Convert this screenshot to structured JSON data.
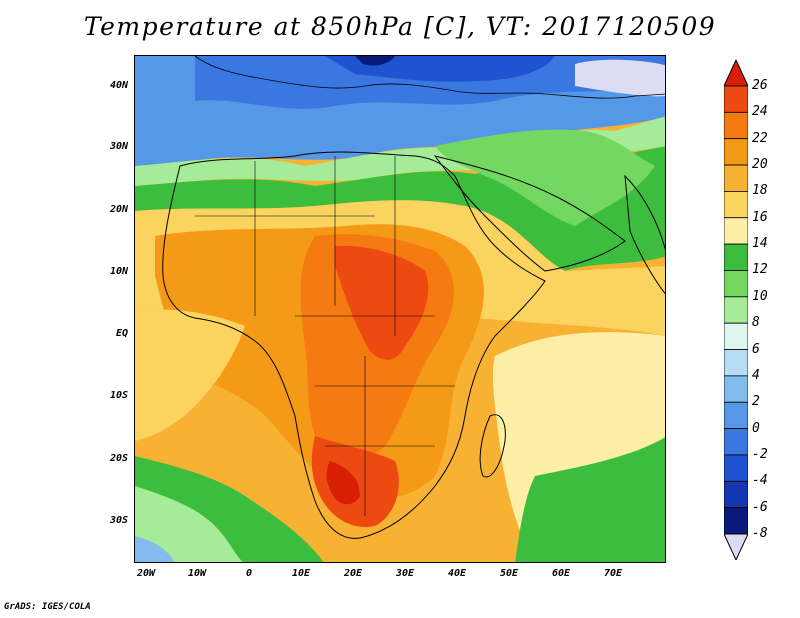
{
  "title": "Temperature at 850hPa [C], VT: 2017120509",
  "credit": "GrADS: IGES/COLA",
  "map": {
    "lat_labels": [
      "40N",
      "30N",
      "20N",
      "10N",
      "EQ",
      "10S",
      "20S",
      "30S"
    ],
    "lon_labels": [
      "20W",
      "10W",
      "0",
      "10E",
      "20E",
      "30E",
      "40E",
      "50E",
      "60E",
      "70E"
    ],
    "lon_range": [
      "22W",
      "80E"
    ],
    "lat_range": [
      "36S",
      "45N"
    ]
  },
  "colorbar": {
    "labels": [
      "26",
      "24",
      "22",
      "20",
      "18",
      "16",
      "14",
      "12",
      "10",
      "8",
      "6",
      "4",
      "2",
      "0",
      "-2",
      "-4",
      "-6",
      "-8"
    ],
    "colors": [
      "#d81e05",
      "#ec4a11",
      "#f57a12",
      "#f59a17",
      "#f7b233",
      "#fbd35f",
      "#fdf0a6",
      "#3cbd3e",
      "#73d762",
      "#a6ec98",
      "#dff6ee",
      "#b7dcf4",
      "#82bcee",
      "#5598e8",
      "#3b77e0",
      "#1f53cf",
      "#1436b0",
      "#0a1a7a",
      "#dcdcf4"
    ]
  }
}
